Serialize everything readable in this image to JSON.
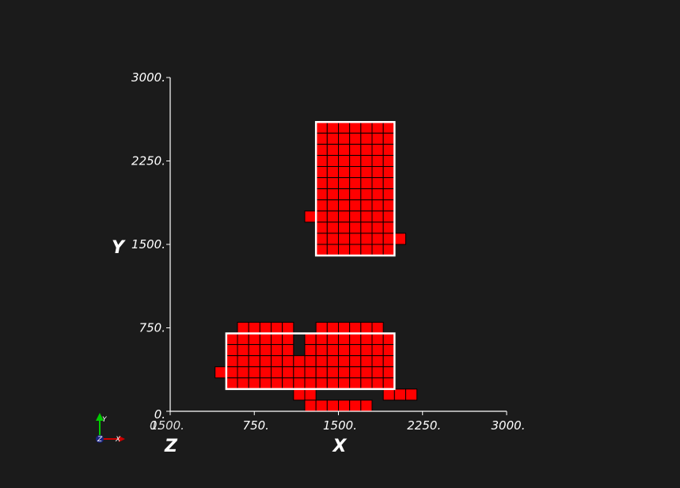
{
  "chart_data": {
    "type": "scatter",
    "title": "",
    "xlabel": "X",
    "ylabel": "Y",
    "zlabel": "Z",
    "xlim": [
      0,
      3000
    ],
    "ylim": [
      0,
      3000
    ],
    "x_ticks": [
      "0.",
      "750.",
      "1500.",
      "2250.",
      "3000."
    ],
    "y_ticks": [
      "0.",
      "750.",
      "1500.",
      "2250.",
      "3000."
    ],
    "z_tick_labels": [
      "1500.",
      "0."
    ],
    "grid": false,
    "colors": {
      "cell": "#ff0000",
      "outline": "#ffffff",
      "axis": "#ffffff",
      "background": "#1b1b1b"
    },
    "cell_size": 100,
    "cells": [
      [
        1300,
        2500
      ],
      [
        1400,
        2500
      ],
      [
        1500,
        2500
      ],
      [
        1600,
        2500
      ],
      [
        1700,
        2500
      ],
      [
        1800,
        2500
      ],
      [
        1900,
        2500
      ],
      [
        1300,
        2400
      ],
      [
        1400,
        2400
      ],
      [
        1500,
        2400
      ],
      [
        1600,
        2400
      ],
      [
        1700,
        2400
      ],
      [
        1800,
        2400
      ],
      [
        1900,
        2400
      ],
      [
        1300,
        2300
      ],
      [
        1400,
        2300
      ],
      [
        1500,
        2300
      ],
      [
        1600,
        2300
      ],
      [
        1700,
        2300
      ],
      [
        1800,
        2300
      ],
      [
        1900,
        2300
      ],
      [
        1300,
        2200
      ],
      [
        1400,
        2200
      ],
      [
        1500,
        2200
      ],
      [
        1600,
        2200
      ],
      [
        1700,
        2200
      ],
      [
        1800,
        2200
      ],
      [
        1900,
        2200
      ],
      [
        1300,
        2100
      ],
      [
        1400,
        2100
      ],
      [
        1500,
        2100
      ],
      [
        1600,
        2100
      ],
      [
        1700,
        2100
      ],
      [
        1800,
        2100
      ],
      [
        1900,
        2100
      ],
      [
        1300,
        2000
      ],
      [
        1400,
        2000
      ],
      [
        1500,
        2000
      ],
      [
        1600,
        2000
      ],
      [
        1700,
        2000
      ],
      [
        1800,
        2000
      ],
      [
        1900,
        2000
      ],
      [
        1300,
        1900
      ],
      [
        1400,
        1900
      ],
      [
        1500,
        1900
      ],
      [
        1600,
        1900
      ],
      [
        1700,
        1900
      ],
      [
        1800,
        1900
      ],
      [
        1900,
        1900
      ],
      [
        1300,
        1800
      ],
      [
        1400,
        1800
      ],
      [
        1500,
        1800
      ],
      [
        1600,
        1800
      ],
      [
        1700,
        1800
      ],
      [
        1800,
        1800
      ],
      [
        1900,
        1800
      ],
      [
        1200,
        1700
      ],
      [
        1300,
        1700
      ],
      [
        1400,
        1700
      ],
      [
        1500,
        1700
      ],
      [
        1600,
        1700
      ],
      [
        1700,
        1700
      ],
      [
        1800,
        1700
      ],
      [
        1900,
        1700
      ],
      [
        1300,
        1600
      ],
      [
        1400,
        1600
      ],
      [
        1500,
        1600
      ],
      [
        1600,
        1600
      ],
      [
        1700,
        1600
      ],
      [
        1800,
        1600
      ],
      [
        1900,
        1600
      ],
      [
        1300,
        1500
      ],
      [
        1400,
        1500
      ],
      [
        1500,
        1500
      ],
      [
        1600,
        1500
      ],
      [
        1700,
        1500
      ],
      [
        1800,
        1500
      ],
      [
        1900,
        1500
      ],
      [
        2000,
        1500
      ],
      [
        1300,
        1400
      ],
      [
        1400,
        1400
      ],
      [
        1500,
        1400
      ],
      [
        1600,
        1400
      ],
      [
        1700,
        1400
      ],
      [
        1800,
        1400
      ],
      [
        1900,
        1400
      ],
      [
        600,
        700
      ],
      [
        700,
        700
      ],
      [
        800,
        700
      ],
      [
        900,
        700
      ],
      [
        1000,
        700
      ],
      [
        1300,
        700
      ],
      [
        1400,
        700
      ],
      [
        1500,
        700
      ],
      [
        1600,
        700
      ],
      [
        1700,
        700
      ],
      [
        1800,
        700
      ],
      [
        500,
        600
      ],
      [
        600,
        600
      ],
      [
        700,
        600
      ],
      [
        800,
        600
      ],
      [
        900,
        600
      ],
      [
        1000,
        600
      ],
      [
        1200,
        600
      ],
      [
        1300,
        600
      ],
      [
        1400,
        600
      ],
      [
        1500,
        600
      ],
      [
        1600,
        600
      ],
      [
        1700,
        600
      ],
      [
        1800,
        600
      ],
      [
        1900,
        600
      ],
      [
        500,
        500
      ],
      [
        600,
        500
      ],
      [
        700,
        500
      ],
      [
        800,
        500
      ],
      [
        900,
        500
      ],
      [
        1000,
        500
      ],
      [
        1200,
        500
      ],
      [
        1300,
        500
      ],
      [
        1400,
        500
      ],
      [
        1500,
        500
      ],
      [
        1600,
        500
      ],
      [
        1700,
        500
      ],
      [
        1800,
        500
      ],
      [
        1900,
        500
      ],
      [
        500,
        400
      ],
      [
        600,
        400
      ],
      [
        700,
        400
      ],
      [
        800,
        400
      ],
      [
        900,
        400
      ],
      [
        1000,
        400
      ],
      [
        1100,
        400
      ],
      [
        1200,
        400
      ],
      [
        1300,
        400
      ],
      [
        1400,
        400
      ],
      [
        1500,
        400
      ],
      [
        1600,
        400
      ],
      [
        1700,
        400
      ],
      [
        1800,
        400
      ],
      [
        1900,
        400
      ],
      [
        400,
        300
      ],
      [
        500,
        300
      ],
      [
        600,
        300
      ],
      [
        700,
        300
      ],
      [
        800,
        300
      ],
      [
        900,
        300
      ],
      [
        1000,
        300
      ],
      [
        1100,
        300
      ],
      [
        1200,
        300
      ],
      [
        1300,
        300
      ],
      [
        1400,
        300
      ],
      [
        1500,
        300
      ],
      [
        1600,
        300
      ],
      [
        1700,
        300
      ],
      [
        1800,
        300
      ],
      [
        1900,
        300
      ],
      [
        500,
        200
      ],
      [
        600,
        200
      ],
      [
        700,
        200
      ],
      [
        800,
        200
      ],
      [
        900,
        200
      ],
      [
        1000,
        200
      ],
      [
        1100,
        200
      ],
      [
        1200,
        200
      ],
      [
        1300,
        200
      ],
      [
        1400,
        200
      ],
      [
        1500,
        200
      ],
      [
        1600,
        200
      ],
      [
        1700,
        200
      ],
      [
        1800,
        200
      ],
      [
        1900,
        200
      ],
      [
        1100,
        100
      ],
      [
        1200,
        100
      ],
      [
        1900,
        100
      ],
      [
        2000,
        100
      ],
      [
        2100,
        100
      ],
      [
        1200,
        0
      ],
      [
        1300,
        0
      ],
      [
        1400,
        0
      ],
      [
        1500,
        0
      ],
      [
        1600,
        0
      ],
      [
        1700,
        0
      ]
    ],
    "outlines": [
      {
        "x0": 1300,
        "x1": 2000,
        "y0": 1400,
        "y1": 2600
      },
      {
        "x0": 500,
        "x1": 2000,
        "y0": 200,
        "y1": 700
      }
    ]
  },
  "orientation_axes": {
    "x": "X",
    "y": "Y",
    "z": "Z"
  }
}
